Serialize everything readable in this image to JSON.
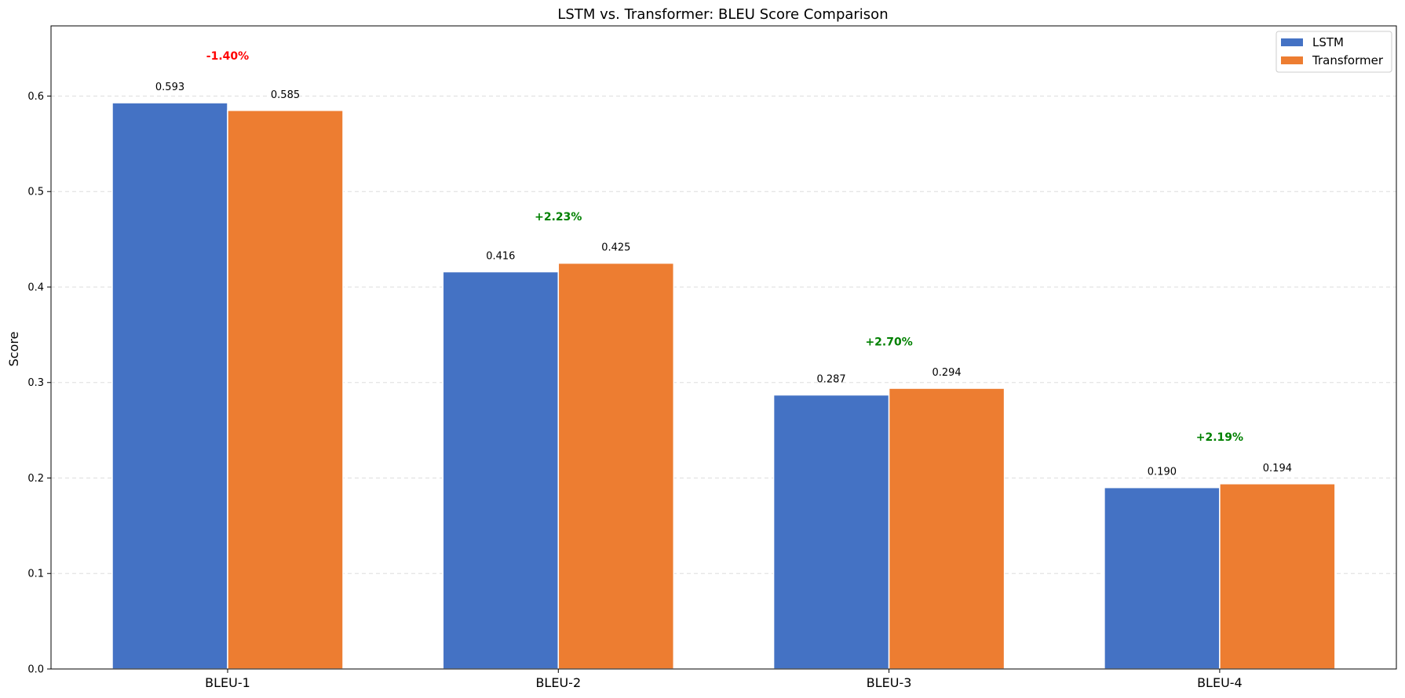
{
  "chart_data": {
    "type": "bar",
    "title": "LSTM vs. Transformer: BLEU Score Comparison",
    "xlabel": "",
    "ylabel": "Score",
    "categories": [
      "BLEU-1",
      "BLEU-2",
      "BLEU-3",
      "BLEU-4"
    ],
    "series": [
      {
        "name": "LSTM",
        "values": [
          0.593,
          0.416,
          0.287,
          0.19
        ],
        "labels": [
          "0.593",
          "0.416",
          "0.287",
          "0.190"
        ],
        "color": "#4472c4"
      },
      {
        "name": "Transformer",
        "values": [
          0.585,
          0.425,
          0.294,
          0.194
        ],
        "labels": [
          "0.585",
          "0.425",
          "0.294",
          "0.194"
        ],
        "color": "#ed7d31"
      }
    ],
    "change_annotations": [
      {
        "text": "-1.40%",
        "color": "#ff0000"
      },
      {
        "text": "+2.23%",
        "color": "#008000"
      },
      {
        "text": "+2.70%",
        "color": "#008000"
      },
      {
        "text": "+2.19%",
        "color": "#008000"
      }
    ],
    "ylim": [
      0,
      0.6735
    ],
    "yticks": [
      0.0,
      0.1,
      0.2,
      0.3,
      0.4,
      0.5,
      0.6
    ],
    "ytick_labels": [
      "0.0",
      "0.1",
      "0.2",
      "0.3",
      "0.4",
      "0.5",
      "0.6"
    ],
    "grid": "y, dashed",
    "legend_position": "top-right"
  }
}
